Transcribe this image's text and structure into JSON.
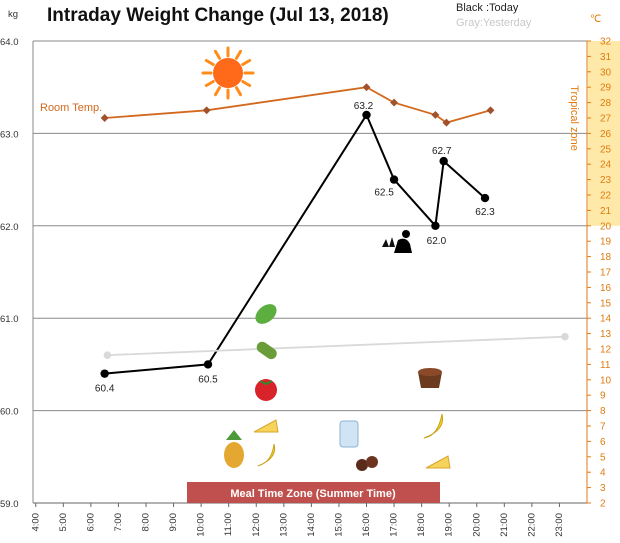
{
  "chart_data": {
    "type": "line",
    "title": "Intraday Weight Change (Jul 13, 2018)",
    "legend": {
      "today": "Black :Today",
      "yesterday": "Gray:Yesterday"
    },
    "y_unit_left": "kg",
    "y_unit_right": "℃",
    "ylim": [
      59.0,
      64.0
    ],
    "y_ticks": [
      "59.0",
      "60.0",
      "61.0",
      "62.0",
      "63.0",
      "64.0"
    ],
    "y2lim": [
      2,
      32
    ],
    "x_ticks": [
      "4:00",
      "5:00",
      "6:00",
      "7:00",
      "8:00",
      "9:00",
      "10:00",
      "11:00",
      "12:00",
      "13:00",
      "14:00",
      "15:00",
      "16:00",
      "17:00",
      "18:00",
      "19:00",
      "20:00",
      "21:00",
      "22:00",
      "23:00"
    ],
    "series": [
      {
        "key": "today",
        "color": "#000000",
        "points": [
          {
            "x": 6.5,
            "y": 60.4,
            "label": "60.4"
          },
          {
            "x": 10.25,
            "y": 60.5,
            "label": "60.5"
          },
          {
            "x": 16.0,
            "y": 63.2,
            "label": "63.2"
          },
          {
            "x": 17.0,
            "y": 62.5,
            "label": "62.5"
          },
          {
            "x": 18.5,
            "y": 62.0,
            "label": "62.0"
          },
          {
            "x": 18.8,
            "y": 62.7,
            "label": "62.7"
          },
          {
            "x": 20.3,
            "y": 62.3,
            "label": "62.3"
          }
        ]
      },
      {
        "key": "yesterday",
        "color": "#d9d9d9",
        "points": [
          {
            "x": 6.6,
            "y": 60.6
          },
          {
            "x": 23.2,
            "y": 60.8
          }
        ]
      },
      {
        "key": "room_temp",
        "name": "Room Temp.",
        "color": "#d2691e",
        "axis": "right",
        "points": [
          {
            "x": 6.5,
            "y": 27.0
          },
          {
            "x": 10.2,
            "y": 27.5
          },
          {
            "x": 16.0,
            "y": 29.0
          },
          {
            "x": 17.0,
            "y": 28.0
          },
          {
            "x": 18.5,
            "y": 27.2
          },
          {
            "x": 18.9,
            "y": 26.7
          },
          {
            "x": 20.5,
            "y": 27.5
          }
        ]
      }
    ],
    "annotations": {
      "room_temp_label": "Room Temp.",
      "tropical_zone": "Tropical zone",
      "tropical_range": [
        20,
        32
      ],
      "meal_time_zone": "Meal Time Zone  (Summer Time)"
    },
    "grid": true
  }
}
